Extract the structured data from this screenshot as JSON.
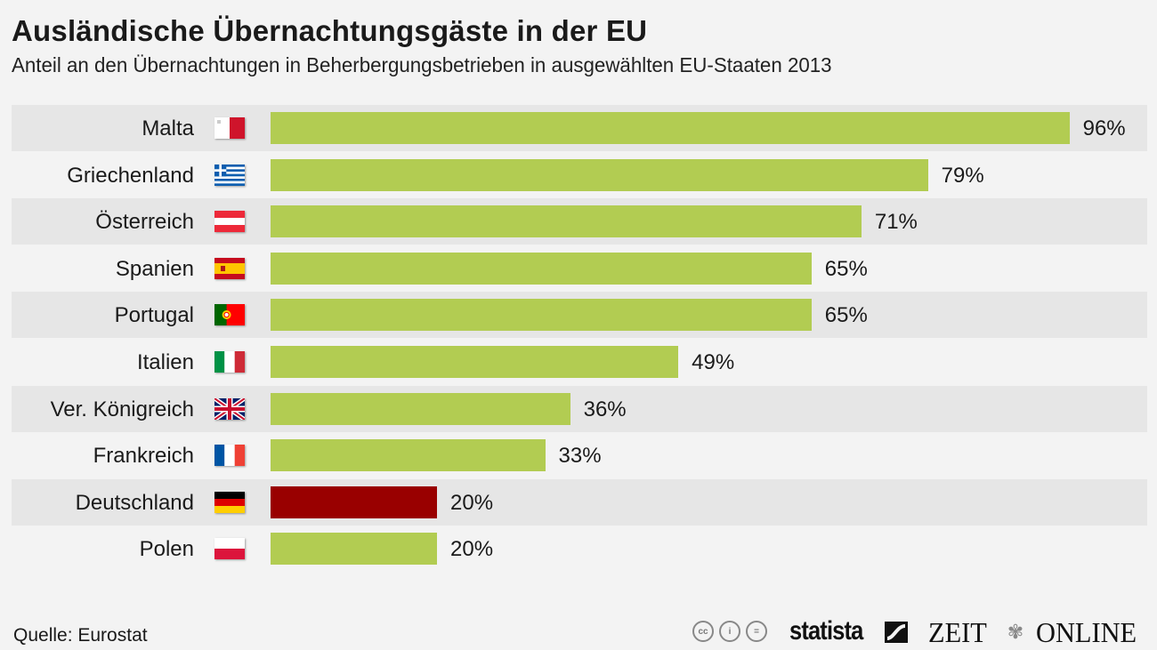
{
  "chart_data": {
    "type": "bar",
    "orientation": "horizontal",
    "title": "Ausländische Übernachtungsgäste in der EU",
    "subtitle": "Anteil an den Übernachtungen in Beherbergungsbetrieben in ausgewählten EU-Staaten 2013",
    "categories": [
      "Malta",
      "Griechenland",
      "Österreich",
      "Spanien",
      "Portugal",
      "Italien",
      "Ver. Königreich",
      "Frankreich",
      "Deutschland",
      "Polen"
    ],
    "values": [
      96,
      79,
      71,
      65,
      65,
      49,
      36,
      33,
      20,
      20
    ],
    "value_labels": [
      "96%",
      "79%",
      "71%",
      "65%",
      "65%",
      "49%",
      "36%",
      "33%",
      "20%",
      "20%"
    ],
    "unit": "%",
    "xlim": [
      0,
      100
    ],
    "flags": [
      "malta-flag",
      "greece-flag",
      "austria-flag",
      "spain-flag",
      "portugal-flag",
      "italy-flag",
      "uk-flag",
      "france-flag",
      "germany-flag",
      "poland-flag"
    ],
    "highlight_index": 8,
    "colors": {
      "default_bar": "#b2cc52",
      "highlight_bar": "#990000",
      "stripe": "#e6e6e6",
      "background": "#f3f3f3"
    },
    "grid": false,
    "legend": "none",
    "xlabel": "",
    "ylabel": ""
  },
  "footer": {
    "source": "Quelle: Eurostat",
    "license_icons": [
      "cc-icon",
      "by-icon",
      "nd-icon"
    ],
    "license_glyphs": [
      "cc",
      "i",
      "="
    ],
    "statista_logo": "statista",
    "zeit_logo_left": "ZEIT",
    "zeit_logo_right": "ONLINE"
  }
}
